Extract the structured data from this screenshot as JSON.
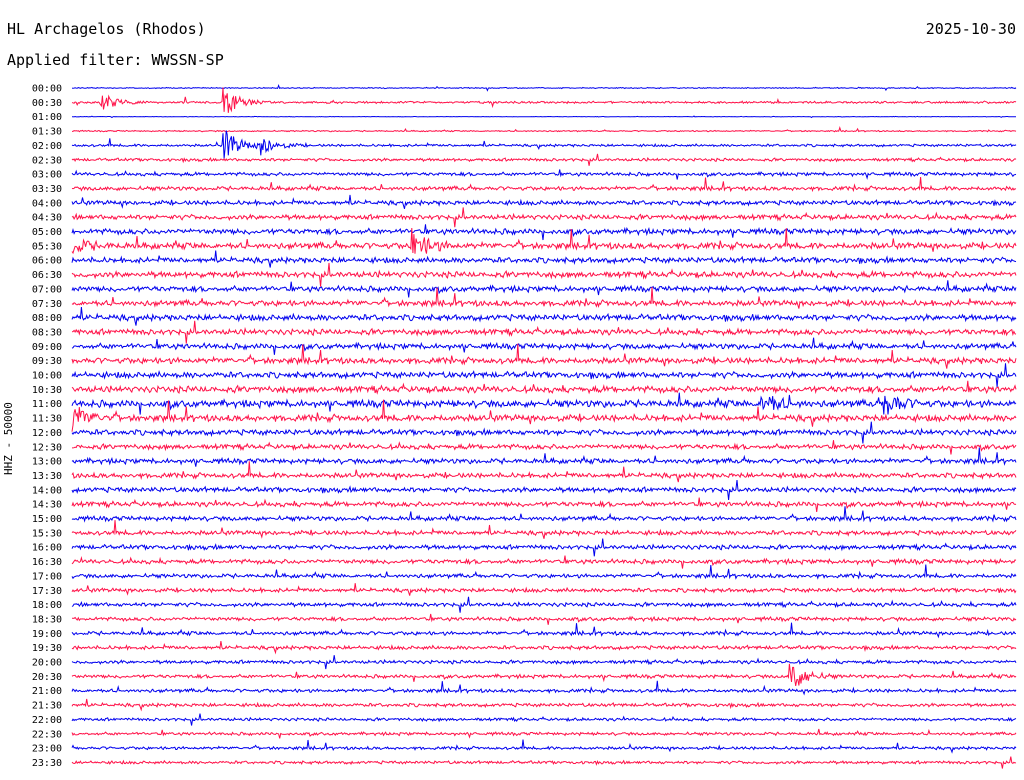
{
  "header": {
    "station": "HL Archagelos (Rhodos)",
    "date": "2025-10-30",
    "filter": "Applied filter: WWSSN-SP"
  },
  "axis": {
    "ylabel": "HHZ - 50000"
  },
  "colors": {
    "even": "#0000ee",
    "odd": "#ff1148"
  },
  "chart_data": {
    "type": "line",
    "title": "HL Archagelos (Rhodos)",
    "ylabel": "HHZ - 50000",
    "tick_labels": [
      "00:00",
      "00:30",
      "01:00",
      "01:30",
      "02:00",
      "02:30",
      "03:00",
      "03:30",
      "04:00",
      "04:30",
      "05:00",
      "05:30",
      "06:00",
      "06:30",
      "07:00",
      "07:30",
      "08:00",
      "08:30",
      "09:00",
      "09:30",
      "10:00",
      "10:30",
      "11:00",
      "11:30",
      "12:00",
      "12:30",
      "13:00",
      "13:30",
      "14:00",
      "14:30",
      "15:00",
      "15:30",
      "16:00",
      "16:30",
      "17:00",
      "17:30",
      "18:00",
      "18:30",
      "19:00",
      "19:30",
      "20:00",
      "20:30",
      "21:00",
      "21:30",
      "22:00",
      "22:30",
      "23:00",
      "23:30"
    ],
    "series_colors": [
      "blue",
      "red"
    ],
    "noise_level": [
      0.4,
      0.8,
      0.2,
      0.5,
      1.0,
      1.2,
      1.4,
      1.6,
      1.8,
      2.0,
      2.2,
      2.5,
      2.2,
      2.4,
      2.2,
      2.3,
      2.4,
      2.3,
      2.2,
      2.4,
      2.4,
      2.6,
      2.8,
      2.6,
      2.2,
      2.0,
      2.0,
      2.0,
      2.0,
      2.0,
      1.8,
      1.8,
      1.8,
      1.8,
      1.6,
      1.6,
      1.6,
      1.5,
      1.5,
      1.5,
      1.4,
      1.4,
      1.4,
      1.4,
      1.2,
      1.2,
      1.2,
      1.2
    ],
    "events": [
      {
        "row": 1,
        "x": 0.03,
        "amp": 10
      },
      {
        "row": 1,
        "x": 0.16,
        "amp": 16
      },
      {
        "row": 4,
        "x": 0.16,
        "amp": 18
      },
      {
        "row": 4,
        "x": 0.2,
        "amp": 10
      },
      {
        "row": 11,
        "x": 0.0,
        "amp": 8
      },
      {
        "row": 11,
        "x": 0.36,
        "amp": 18
      },
      {
        "row": 22,
        "x": 0.73,
        "amp": 14
      },
      {
        "row": 22,
        "x": 0.86,
        "amp": 14
      },
      {
        "row": 23,
        "x": 0.0,
        "amp": 14
      },
      {
        "row": 41,
        "x": 0.76,
        "amp": 18
      }
    ],
    "grid": false
  }
}
